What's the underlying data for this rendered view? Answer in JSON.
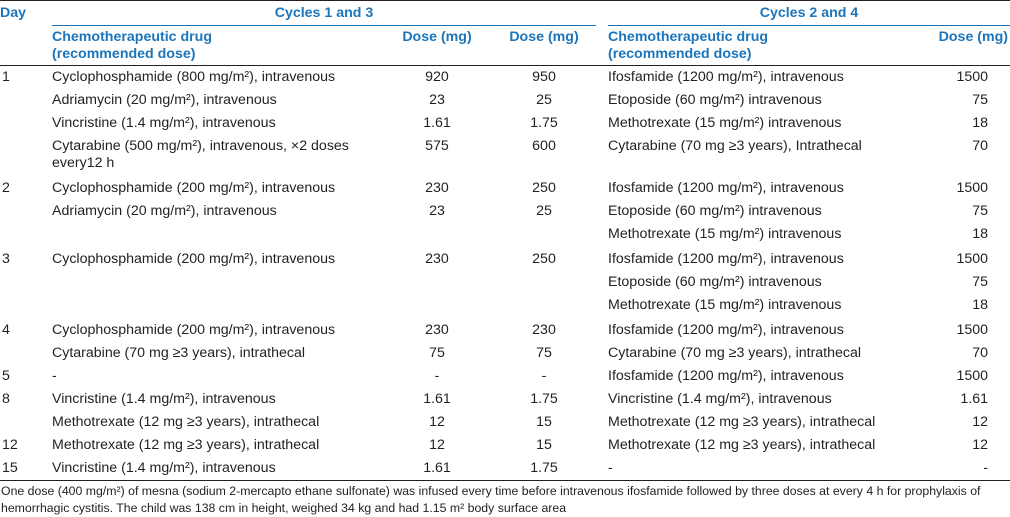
{
  "headers": {
    "day": "Day",
    "cycles_1_3": "Cycles 1 and 3",
    "cycles_2_4": "Cycles 2 and 4",
    "drug": "Chemotherapeutic drug",
    "drug_sub": "(recommended dose)",
    "dose": "Dose (mg)"
  },
  "rows": [
    {
      "day": "1",
      "drug_a": "Cyclophosphamide (800 mg/m²), intravenous",
      "dose_a1": "920",
      "dose_a2": "950",
      "drug_b": "Ifosfamide (1200 mg/m²), intravenous",
      "dose_b": "1500",
      "group": true
    },
    {
      "day": "",
      "drug_a": "Adriamycin (20 mg/m²), intravenous",
      "dose_a1": "23",
      "dose_a2": "25",
      "drug_b": "Etoposide (60 mg/m²) intravenous",
      "dose_b": "75"
    },
    {
      "day": "",
      "drug_a": "Vincristine (1.4 mg/m²), intravenous",
      "dose_a1": "1.61",
      "dose_a2": "1.75",
      "drug_b": "Methotrexate (15 mg/m²) intravenous",
      "dose_b": "18"
    },
    {
      "day": "",
      "drug_a": "Cytarabine (500 mg/m²), intravenous, ×2 doses every12 h",
      "dose_a1": "575",
      "dose_a2": "600",
      "drug_b": "Cytarabine (70 mg ≥3 years), Intrathecal",
      "dose_b": "70"
    },
    {
      "day": "2",
      "drug_a": "Cyclophosphamide (200 mg/m²), intravenous",
      "dose_a1": "230",
      "dose_a2": "250",
      "drug_b": "Ifosfamide (1200 mg/m²), intravenous",
      "dose_b": "1500",
      "group": true
    },
    {
      "day": "",
      "drug_a": "Adriamycin (20 mg/m²), intravenous",
      "dose_a1": "23",
      "dose_a2": "25",
      "drug_b": "Etoposide (60 mg/m²) intravenous",
      "dose_b": "75"
    },
    {
      "day": "",
      "drug_a": "",
      "dose_a1": "",
      "dose_a2": "",
      "drug_b": "Methotrexate (15 mg/m²) intravenous",
      "dose_b": "18"
    },
    {
      "day": "3",
      "drug_a": "Cyclophosphamide (200 mg/m²), intravenous",
      "dose_a1": "230",
      "dose_a2": "250",
      "drug_b": "Ifosfamide (1200 mg/m²), intravenous",
      "dose_b": "1500",
      "group": true
    },
    {
      "day": "",
      "drug_a": "",
      "dose_a1": "",
      "dose_a2": "",
      "drug_b": "Etoposide (60 mg/m²) intravenous",
      "dose_b": "75"
    },
    {
      "day": "",
      "drug_a": "",
      "dose_a1": "",
      "dose_a2": "",
      "drug_b": "Methotrexate (15 mg/m²) intravenous",
      "dose_b": "18"
    },
    {
      "day": "4",
      "drug_a": "Cyclophosphamide (200 mg/m²), intravenous",
      "dose_a1": "230",
      "dose_a2": "230",
      "drug_b": "Ifosfamide (1200 mg/m²), intravenous",
      "dose_b": "1500",
      "group": true
    },
    {
      "day": "",
      "drug_a": "Cytarabine (70 mg ≥3 years), intrathecal",
      "dose_a1": "75",
      "dose_a2": "75",
      "drug_b": "Cytarabine (70 mg ≥3 years), intrathecal",
      "dose_b": "70"
    },
    {
      "day": "5",
      "drug_a": "-",
      "dose_a1": "-",
      "dose_a2": "-",
      "drug_b": "Ifosfamide (1200 mg/m²), intravenous",
      "dose_b": "1500"
    },
    {
      "day": "8",
      "drug_a": "Vincristine (1.4 mg/m²), intravenous",
      "dose_a1": "1.61",
      "dose_a2": "1.75",
      "drug_b": "Vincristine (1.4 mg/m²), intravenous",
      "dose_b": "1.61"
    },
    {
      "day": "",
      "drug_a": "Methotrexate (12 mg ≥3 years), intrathecal",
      "dose_a1": "12",
      "dose_a2": "15",
      "drug_b": "Methotrexate (12 mg ≥3 years), intrathecal",
      "dose_b": "12"
    },
    {
      "day": "12",
      "drug_a": "Methotrexate (12 mg ≥3 years), intrathecal",
      "dose_a1": "12",
      "dose_a2": "15",
      "drug_b": "Methotrexate (12 mg ≥3 years), intrathecal",
      "dose_b": "12"
    },
    {
      "day": "15",
      "drug_a": "Vincristine (1.4 mg/m²), intravenous",
      "dose_a1": "1.61",
      "dose_a2": "1.75",
      "drug_b": "-",
      "dose_b": "-"
    }
  ],
  "footnote": "One dose (400 mg/m²) of mesna (sodium 2-mercapto ethane sulfonate) was infused every time before intravenous ifosfamide followed by three doses at every 4 h for prophylaxis of hemorrhagic cystitis. The child was 138 cm in height, weighed 34 kg and had 1.15 m² body surface area",
  "colors": {
    "header_text": "#1b75bb",
    "body_text": "#231f20",
    "rule": "#231f20"
  }
}
